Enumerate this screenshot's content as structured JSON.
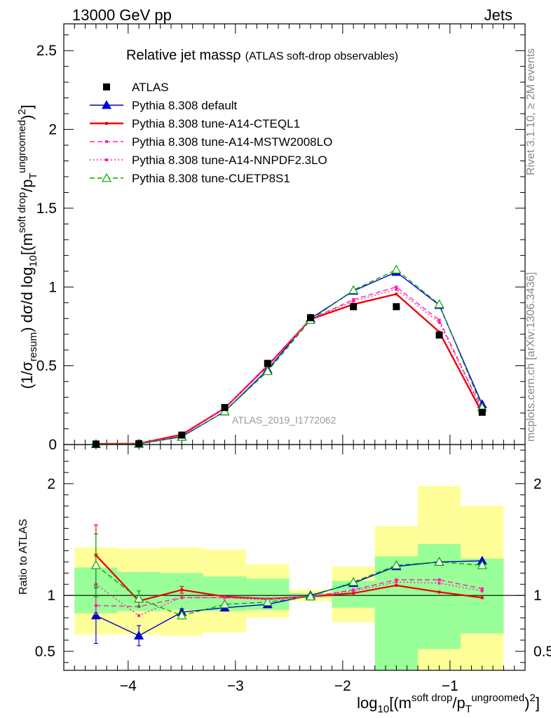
{
  "header": {
    "left": "13000 GeV pp",
    "right": "Jets",
    "title_main": "Relative jet massρ",
    "title_sub": "(ATLAS soft-drop observables)"
  },
  "side_labels": {
    "top": "Rivet 3.1.10, ≥ 2M events",
    "bottom": "mcplots.cern.ch [arXiv:1306.3436]"
  },
  "analysis_id": "ATLAS_2019_I1772062",
  "axes": {
    "main_ylabel": "(1/σresum) dσ/d log10[(m soft drop/pT ungroomed)2]",
    "ratio_ylabel": "Ratio to ATLAS",
    "xlabel": "log10[(m soft drop/pT ungroomed)2]",
    "main_yticks": [
      "0",
      "0.5",
      "1",
      "1.5",
      "2",
      "2.5"
    ],
    "ratio_yticks": [
      "0.5",
      "1",
      "2"
    ],
    "xticks": [
      "−4",
      "−3",
      "−2",
      "−1"
    ]
  },
  "chart_data": {
    "type": "line",
    "title": "Relative jet massρ (ATLAS soft-drop observables)",
    "xlim": [
      -4.6,
      -0.3
    ],
    "ylim": [
      0,
      2.67
    ],
    "ratio_ylim": [
      0.33,
      2.35
    ],
    "bin_edges": [
      -4.5,
      -4.1,
      -3.7,
      -3.3,
      -2.9,
      -2.5,
      -2.1,
      -1.7,
      -1.3,
      -0.9,
      -0.5
    ],
    "x": [
      -4.3,
      -3.9,
      -3.5,
      -3.1,
      -2.7,
      -2.3,
      -1.9,
      -1.5,
      -1.1,
      -0.7
    ],
    "data": {
      "name": "ATLAS",
      "values": [
        0.003,
        0.006,
        0.06,
        0.235,
        0.515,
        0.805,
        0.875,
        0.875,
        0.695,
        0.205
      ]
    },
    "series": [
      {
        "name": "Pythia 8.308 default",
        "color": "#0000cc",
        "style": "solid",
        "marker": "triangle-filled",
        "values": [
          0.002,
          0.004,
          0.05,
          0.21,
          0.475,
          0.8,
          0.975,
          1.095,
          0.885,
          0.255
        ],
        "ratio": [
          0.82,
          0.64,
          0.85,
          0.89,
          0.92,
          1.0,
          1.11,
          1.26,
          1.3,
          1.31
        ],
        "ratio_err": [
          0.25,
          0.09,
          0.03,
          0,
          0,
          0,
          0,
          0,
          0,
          0
        ]
      },
      {
        "name": "Pythia 8.308 tune-A14-CTEQL1",
        "color": "#ee0000",
        "style": "solid",
        "marker": "none",
        "values": [
          0.004,
          0.006,
          0.063,
          0.23,
          0.5,
          0.795,
          0.89,
          0.955,
          0.715,
          0.2
        ],
        "ratio": [
          1.36,
          0.95,
          1.05,
          0.99,
          0.97,
          0.99,
          1.02,
          1.09,
          1.03,
          0.98
        ],
        "ratio_err": [
          0.27,
          0,
          0.03,
          0,
          0,
          0,
          0,
          0,
          0,
          0
        ]
      },
      {
        "name": "Pythia 8.308 tune-A14-MSTW2008LO",
        "color": "#ff22aa",
        "style": "dashed",
        "marker": "none",
        "values": [
          0.003,
          0.005,
          0.057,
          0.23,
          0.5,
          0.795,
          0.92,
          1.0,
          0.79,
          0.22
        ],
        "ratio": [
          0.91,
          0.9,
          0.98,
          0.98,
          0.97,
          0.99,
          1.05,
          1.14,
          1.14,
          1.06
        ],
        "ratio_err": [
          0,
          0,
          0,
          0,
          0,
          0,
          0,
          0,
          0,
          0
        ]
      },
      {
        "name": "Pythia 8.308 tune-A14-NNPDF2.3LO",
        "color": "#ff22aa",
        "style": "dotted",
        "marker": "none",
        "values": [
          0.003,
          0.005,
          0.057,
          0.23,
          0.495,
          0.795,
          0.91,
          0.985,
          0.775,
          0.215
        ],
        "ratio": [
          1.1,
          0.82,
          0.98,
          0.98,
          0.96,
          0.99,
          1.04,
          1.12,
          1.11,
          1.04
        ],
        "ratio_err": [
          0.27,
          0,
          0,
          0,
          0,
          0,
          0,
          0,
          0,
          0
        ]
      },
      {
        "name": "Pythia 8.308 tune-CUETP8S1",
        "color": "#00aa00",
        "style": "dashed",
        "marker": "triangle-open",
        "values": [
          0.003,
          0.005,
          0.048,
          0.21,
          0.465,
          0.79,
          0.98,
          1.11,
          0.89,
          0.235
        ],
        "ratio": [
          1.27,
          0.97,
          0.82,
          0.92,
          0.94,
          0.99,
          1.12,
          1.27,
          1.3,
          1.27
        ],
        "ratio_err": [
          0.28,
          0.07,
          0.03,
          0,
          0,
          0,
          0,
          0,
          0,
          0
        ]
      }
    ],
    "bands": {
      "outer_color": "#ffff99",
      "inner_color": "#99ff99",
      "outer": [
        [
          0.65,
          1.43
        ],
        [
          0.65,
          1.42
        ],
        [
          0.64,
          1.43
        ],
        [
          0.67,
          1.41
        ],
        [
          0.8,
          1.28
        ],
        [
          0.95,
          1.05
        ],
        [
          0.76,
          1.26
        ],
        [
          0.33,
          1.62
        ],
        [
          0.33,
          1.98
        ],
        [
          0.33,
          1.8
        ]
      ],
      "inner": [
        [
          0.84,
          1.25
        ],
        [
          0.86,
          1.21
        ],
        [
          0.87,
          1.2
        ],
        [
          0.86,
          1.17
        ],
        [
          0.87,
          1.15
        ],
        [
          0.98,
          1.02
        ],
        [
          0.89,
          1.13
        ],
        [
          0.33,
          1.35
        ],
        [
          0.52,
          1.46
        ],
        [
          0.66,
          1.33
        ]
      ]
    }
  }
}
